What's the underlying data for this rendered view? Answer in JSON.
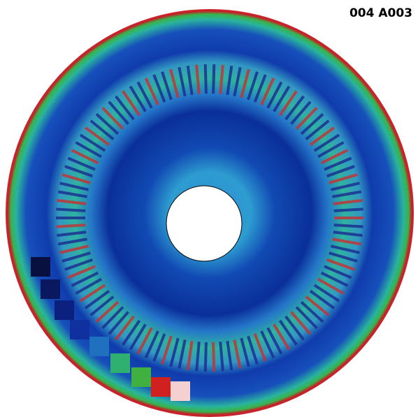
{
  "label": "004 A003"
}
